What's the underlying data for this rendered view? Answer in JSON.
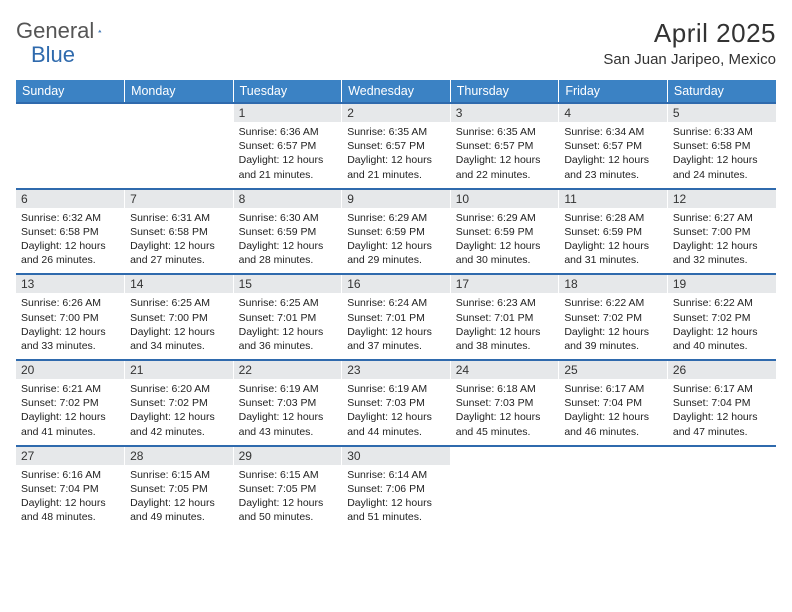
{
  "logo": {
    "general": "General",
    "blue": "Blue"
  },
  "header": {
    "month": "April 2025",
    "location": "San Juan Jaripeo, Mexico"
  },
  "colors": {
    "brand_blue": "#2f6aad",
    "header_bg": "#3b82c4",
    "header_fg": "#ffffff",
    "daynum_bg": "#e6e8ea",
    "rule": "#2f6aad",
    "text": "#222222"
  },
  "dayNames": [
    "Sunday",
    "Monday",
    "Tuesday",
    "Wednesday",
    "Thursday",
    "Friday",
    "Saturday"
  ],
  "grid": {
    "cols": 7,
    "rows": 5,
    "startIndex": 2,
    "numDays": 30
  },
  "fonts": {
    "dayName": 12.5,
    "dayNum": 12,
    "body": 10.5,
    "title": 26,
    "subtitle": 15
  },
  "days": [
    {
      "n": 1,
      "sunrise": "6:36 AM",
      "sunset": "6:57 PM",
      "daylight": "12 hours and 21 minutes."
    },
    {
      "n": 2,
      "sunrise": "6:35 AM",
      "sunset": "6:57 PM",
      "daylight": "12 hours and 21 minutes."
    },
    {
      "n": 3,
      "sunrise": "6:35 AM",
      "sunset": "6:57 PM",
      "daylight": "12 hours and 22 minutes."
    },
    {
      "n": 4,
      "sunrise": "6:34 AM",
      "sunset": "6:57 PM",
      "daylight": "12 hours and 23 minutes."
    },
    {
      "n": 5,
      "sunrise": "6:33 AM",
      "sunset": "6:58 PM",
      "daylight": "12 hours and 24 minutes."
    },
    {
      "n": 6,
      "sunrise": "6:32 AM",
      "sunset": "6:58 PM",
      "daylight": "12 hours and 26 minutes."
    },
    {
      "n": 7,
      "sunrise": "6:31 AM",
      "sunset": "6:58 PM",
      "daylight": "12 hours and 27 minutes."
    },
    {
      "n": 8,
      "sunrise": "6:30 AM",
      "sunset": "6:59 PM",
      "daylight": "12 hours and 28 minutes."
    },
    {
      "n": 9,
      "sunrise": "6:29 AM",
      "sunset": "6:59 PM",
      "daylight": "12 hours and 29 minutes."
    },
    {
      "n": 10,
      "sunrise": "6:29 AM",
      "sunset": "6:59 PM",
      "daylight": "12 hours and 30 minutes."
    },
    {
      "n": 11,
      "sunrise": "6:28 AM",
      "sunset": "6:59 PM",
      "daylight": "12 hours and 31 minutes."
    },
    {
      "n": 12,
      "sunrise": "6:27 AM",
      "sunset": "7:00 PM",
      "daylight": "12 hours and 32 minutes."
    },
    {
      "n": 13,
      "sunrise": "6:26 AM",
      "sunset": "7:00 PM",
      "daylight": "12 hours and 33 minutes."
    },
    {
      "n": 14,
      "sunrise": "6:25 AM",
      "sunset": "7:00 PM",
      "daylight": "12 hours and 34 minutes."
    },
    {
      "n": 15,
      "sunrise": "6:25 AM",
      "sunset": "7:01 PM",
      "daylight": "12 hours and 36 minutes."
    },
    {
      "n": 16,
      "sunrise": "6:24 AM",
      "sunset": "7:01 PM",
      "daylight": "12 hours and 37 minutes."
    },
    {
      "n": 17,
      "sunrise": "6:23 AM",
      "sunset": "7:01 PM",
      "daylight": "12 hours and 38 minutes."
    },
    {
      "n": 18,
      "sunrise": "6:22 AM",
      "sunset": "7:02 PM",
      "daylight": "12 hours and 39 minutes."
    },
    {
      "n": 19,
      "sunrise": "6:22 AM",
      "sunset": "7:02 PM",
      "daylight": "12 hours and 40 minutes."
    },
    {
      "n": 20,
      "sunrise": "6:21 AM",
      "sunset": "7:02 PM",
      "daylight": "12 hours and 41 minutes."
    },
    {
      "n": 21,
      "sunrise": "6:20 AM",
      "sunset": "7:02 PM",
      "daylight": "12 hours and 42 minutes."
    },
    {
      "n": 22,
      "sunrise": "6:19 AM",
      "sunset": "7:03 PM",
      "daylight": "12 hours and 43 minutes."
    },
    {
      "n": 23,
      "sunrise": "6:19 AM",
      "sunset": "7:03 PM",
      "daylight": "12 hours and 44 minutes."
    },
    {
      "n": 24,
      "sunrise": "6:18 AM",
      "sunset": "7:03 PM",
      "daylight": "12 hours and 45 minutes."
    },
    {
      "n": 25,
      "sunrise": "6:17 AM",
      "sunset": "7:04 PM",
      "daylight": "12 hours and 46 minutes."
    },
    {
      "n": 26,
      "sunrise": "6:17 AM",
      "sunset": "7:04 PM",
      "daylight": "12 hours and 47 minutes."
    },
    {
      "n": 27,
      "sunrise": "6:16 AM",
      "sunset": "7:04 PM",
      "daylight": "12 hours and 48 minutes."
    },
    {
      "n": 28,
      "sunrise": "6:15 AM",
      "sunset": "7:05 PM",
      "daylight": "12 hours and 49 minutes."
    },
    {
      "n": 29,
      "sunrise": "6:15 AM",
      "sunset": "7:05 PM",
      "daylight": "12 hours and 50 minutes."
    },
    {
      "n": 30,
      "sunrise": "6:14 AM",
      "sunset": "7:06 PM",
      "daylight": "12 hours and 51 minutes."
    }
  ],
  "labels": {
    "sunrise": "Sunrise:",
    "sunset": "Sunset:",
    "daylight": "Daylight:"
  }
}
